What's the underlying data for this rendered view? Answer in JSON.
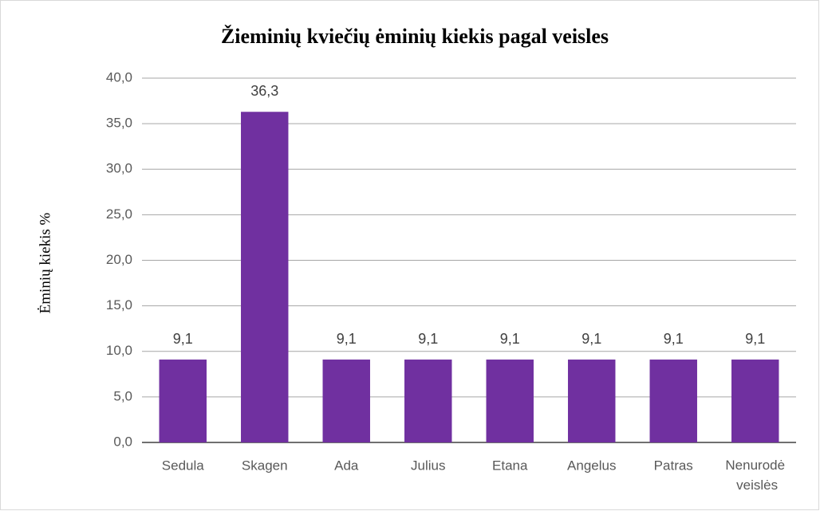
{
  "chart_data": {
    "type": "bar",
    "title": "Žieminių kviečių ėminių kiekis pagal veisles",
    "y_label": "Ėminių kiekis  %",
    "categories": [
      "Sedula",
      "Skagen",
      "Ada",
      "Julius",
      "Etana",
      "Angelus",
      "Patras",
      "Nenurodė veislės"
    ],
    "values": [
      9.1,
      36.3,
      9.1,
      9.1,
      9.1,
      9.1,
      9.1,
      9.1
    ],
    "value_labels": [
      "9,1",
      "36,3",
      "9,1",
      "9,1",
      "9,1",
      "9,1",
      "9,1",
      "9,1"
    ],
    "color": "#7030a0",
    "ylim": [
      0,
      40
    ],
    "yticks": [
      {
        "value": 0,
        "label": "0,0"
      },
      {
        "value": 5,
        "label": "5,0"
      },
      {
        "value": 10,
        "label": "10,0"
      },
      {
        "value": 15,
        "label": "15,0"
      },
      {
        "value": 20,
        "label": "20,0"
      },
      {
        "value": 25,
        "label": "25,0"
      },
      {
        "value": 30,
        "label": "30,0"
      },
      {
        "value": 35,
        "label": "35,0"
      },
      {
        "value": 40,
        "label": "40,0"
      }
    ],
    "grid": true
  }
}
